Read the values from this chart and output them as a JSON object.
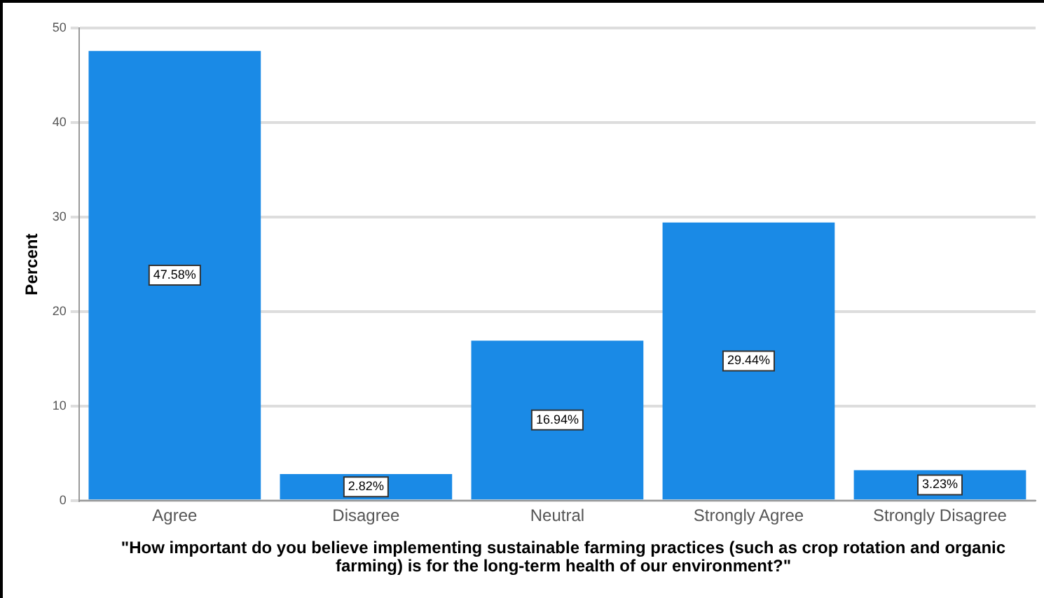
{
  "chart_data": {
    "type": "bar",
    "categories": [
      "Agree",
      "Disagree",
      "Neutral",
      "Strongly Agree",
      "Strongly Disagree"
    ],
    "values": [
      47.58,
      2.82,
      16.94,
      29.44,
      3.23
    ],
    "value_labels": [
      "47.58%",
      "2.82%",
      "16.94%",
      "29.44%",
      "3.23%"
    ],
    "color": "#1a8ae6",
    "ylabel": "Percent",
    "xlabel": "\"How important do you believe implementing sustainable farming practices (such as crop rotation and organic farming) is for the long-term health of our environment?\"",
    "ylim": [
      0,
      50
    ],
    "yticks": [
      0,
      10,
      20,
      30,
      40,
      50
    ],
    "grid": "y",
    "legend": false
  }
}
